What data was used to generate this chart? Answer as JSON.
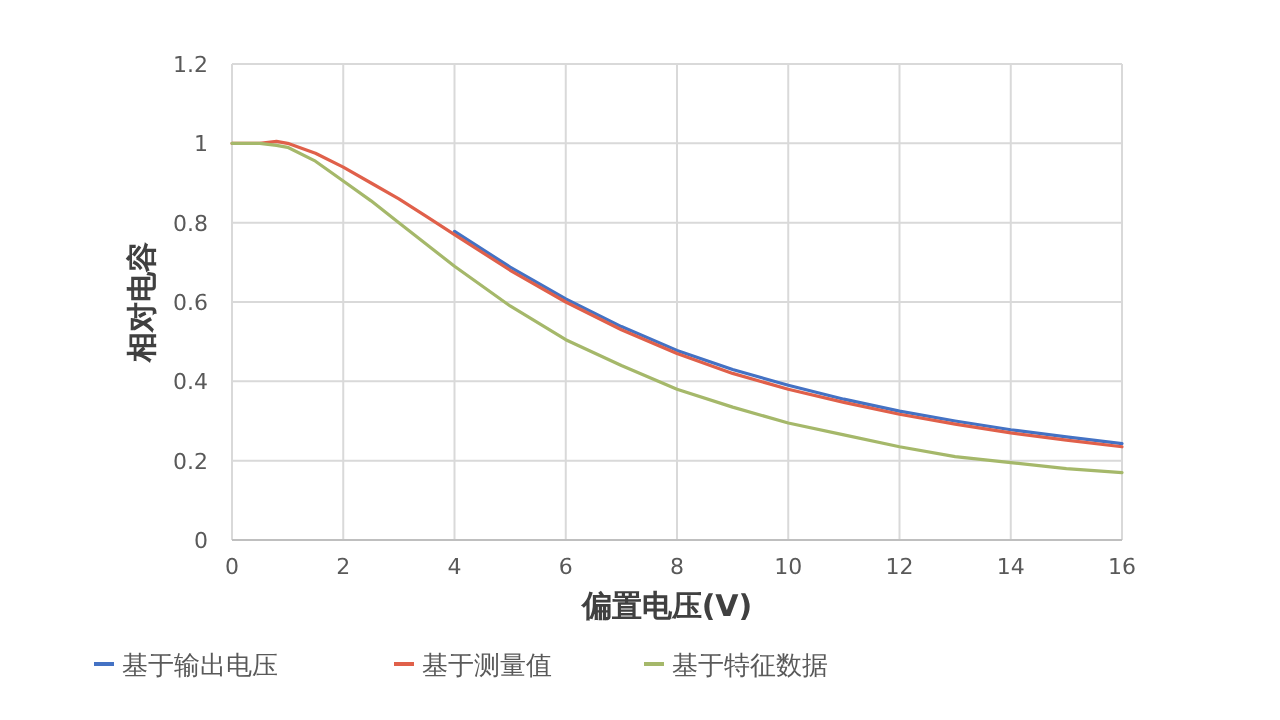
{
  "chart_data": {
    "type": "line",
    "xlabel": "偏置电压(V)",
    "ylabel": "相对电容",
    "xlim": [
      0,
      16
    ],
    "xticks": [
      0,
      2,
      4,
      6,
      8,
      10,
      12,
      14,
      16
    ],
    "ylim": [
      0,
      1.2
    ],
    "yticks": [
      0,
      0.2,
      0.4,
      0.6,
      0.8,
      1,
      1.2
    ],
    "grid": true,
    "legend": "bottom",
    "x": [
      0,
      0.5,
      0.8,
      1,
      1.5,
      2,
      2.5,
      3,
      3.5,
      4,
      5,
      6,
      7,
      8,
      9,
      10,
      11,
      12,
      13,
      14,
      15,
      16
    ],
    "series": [
      {
        "name": "基于输出电压",
        "color": "#4472c4",
        "values": [
          null,
          null,
          null,
          null,
          null,
          null,
          null,
          null,
          null,
          0.778,
          0.688,
          0.608,
          0.538,
          0.478,
          0.43,
          0.39,
          0.355,
          0.325,
          0.3,
          0.278,
          0.26,
          0.243
        ]
      },
      {
        "name": "基于测量值",
        "color": "#e0604a",
        "values": [
          1,
          1,
          1.005,
          1,
          0.975,
          0.94,
          0.9,
          0.86,
          0.815,
          0.77,
          0.68,
          0.6,
          0.53,
          0.47,
          0.42,
          0.38,
          0.347,
          0.317,
          0.292,
          0.27,
          0.252,
          0.235
        ]
      },
      {
        "name": "基于特征数据",
        "color": "#a5b86a",
        "values": [
          1,
          1,
          0.995,
          0.99,
          0.955,
          0.905,
          0.855,
          0.8,
          0.745,
          0.69,
          0.59,
          0.505,
          0.44,
          0.38,
          0.335,
          0.295,
          0.265,
          0.235,
          0.21,
          0.195,
          0.18,
          0.17
        ]
      }
    ]
  }
}
